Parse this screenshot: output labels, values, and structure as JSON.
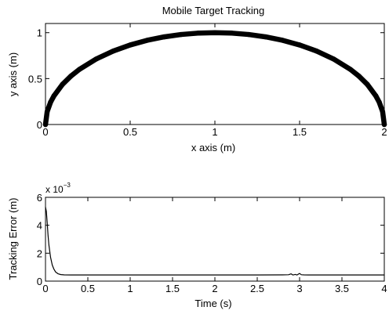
{
  "chart_data": [
    {
      "type": "line",
      "title": "Mobile Target Tracking",
      "xlabel": "x axis (m)",
      "ylabel": "y axis (m)",
      "xlim": [
        0,
        2
      ],
      "ylim": [
        0,
        1.1
      ],
      "xticks": [
        0,
        0.5,
        1,
        1.5,
        2
      ],
      "xtick_labels": [
        "0",
        "0.5",
        "1",
        "1.5",
        "2"
      ],
      "yticks": [
        0,
        0.5,
        1
      ],
      "ytick_labels": [
        "0",
        "0.5",
        "1"
      ],
      "grid": false,
      "series": [
        {
          "color": "#000000",
          "style": "thick trajectory line",
          "x": [
            0.0,
            0.01,
            0.03,
            0.05,
            0.1,
            0.15,
            0.2,
            0.3,
            0.4,
            0.5,
            0.6,
            0.7,
            0.8,
            0.9,
            1.0,
            1.1,
            1.2,
            1.3,
            1.4,
            1.5,
            1.6,
            1.7,
            1.8,
            1.85,
            1.9,
            1.95,
            1.97,
            1.99,
            2.0
          ],
          "y": [
            0.0,
            0.141,
            0.243,
            0.312,
            0.436,
            0.527,
            0.6,
            0.714,
            0.8,
            0.866,
            0.917,
            0.954,
            0.98,
            0.995,
            1.0,
            0.995,
            0.98,
            0.954,
            0.917,
            0.866,
            0.8,
            0.714,
            0.6,
            0.527,
            0.436,
            0.312,
            0.243,
            0.141,
            0.0
          ]
        }
      ]
    },
    {
      "type": "line",
      "title": "",
      "xlabel": "Time (s)",
      "ylabel": "Tracking Error (m)",
      "y_multiplier_base": "x 10",
      "y_multiplier_exp": "−3",
      "xlim": [
        0,
        4
      ],
      "ylim": [
        0,
        6
      ],
      "xticks": [
        0,
        0.5,
        1,
        1.5,
        2,
        2.5,
        3,
        3.5,
        4
      ],
      "xtick_labels": [
        "0",
        "0.5",
        "1",
        "1.5",
        "2",
        "2.5",
        "3",
        "3.5",
        "4"
      ],
      "yticks": [
        0,
        2,
        4,
        6
      ],
      "ytick_labels": [
        "0",
        "2",
        "4",
        "6"
      ],
      "grid": false,
      "series": [
        {
          "color": "#000000",
          "x": [
            0.0,
            0.01,
            0.02,
            0.03,
            0.04,
            0.06,
            0.08,
            0.1,
            0.12,
            0.15,
            0.18,
            0.22,
            0.3,
            0.5,
            1.0,
            1.5,
            2.0,
            2.5,
            2.8,
            2.87,
            2.9,
            2.92,
            2.95,
            2.97,
            3.0,
            3.02,
            3.05,
            3.1,
            3.5,
            4.0
          ],
          "y": [
            5.3,
            5.0,
            4.2,
            3.3,
            2.6,
            1.7,
            1.15,
            0.85,
            0.65,
            0.52,
            0.47,
            0.45,
            0.44,
            0.44,
            0.44,
            0.44,
            0.44,
            0.44,
            0.45,
            0.46,
            0.52,
            0.44,
            0.48,
            0.44,
            0.55,
            0.46,
            0.45,
            0.44,
            0.44,
            0.44
          ]
        }
      ]
    }
  ]
}
